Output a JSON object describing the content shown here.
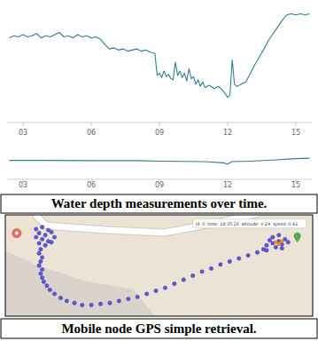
{
  "chart_data": [
    {
      "type": "line",
      "x": [
        2.4,
        2.6,
        2.8,
        3.0,
        3.2,
        3.4,
        3.6,
        3.8,
        4.0,
        4.2,
        4.4,
        4.6,
        4.8,
        5.0,
        5.2,
        5.4,
        5.6,
        5.8,
        6.0,
        6.2,
        6.4,
        6.6,
        6.8,
        7.0,
        7.2,
        7.4,
        7.6,
        7.8,
        8.0,
        8.2,
        8.4,
        8.6,
        8.8,
        8.9,
        9.0,
        9.1,
        9.2,
        9.3,
        9.4,
        9.5,
        9.6,
        9.7,
        9.8,
        9.9,
        10.0,
        10.1,
        10.2,
        10.3,
        10.4,
        10.5,
        10.6,
        10.7,
        10.8,
        10.9,
        11.0,
        11.2,
        11.4,
        11.6,
        11.8,
        12.0,
        12.1,
        12.2,
        12.3,
        12.4,
        12.6,
        12.8,
        13.0,
        13.2,
        13.4,
        13.6,
        13.8,
        14.0,
        14.2,
        14.4,
        14.6,
        14.8,
        15.0,
        15.2,
        15.4,
        15.6
      ],
      "series": [
        {
          "color": "#2f7f8f",
          "values": [
            72,
            74,
            73,
            75,
            73,
            74,
            76,
            72,
            74,
            73,
            75,
            77,
            73,
            74,
            72,
            75,
            73,
            74,
            72,
            73,
            71,
            66,
            62,
            63,
            61,
            62,
            60,
            61,
            62,
            60,
            61,
            59,
            58,
            38,
            40,
            36,
            42,
            37,
            39,
            35,
            34,
            50,
            38,
            42,
            36,
            40,
            33,
            44,
            35,
            37,
            30,
            34,
            28,
            32,
            27,
            29,
            26,
            28,
            24,
            18,
            20,
            52,
            30,
            28,
            30,
            32,
            40,
            48,
            55,
            62,
            70,
            76,
            82,
            88,
            93,
            94,
            93,
            94,
            93,
            94
          ]
        }
      ],
      "xlim": [
        2.3,
        15.7
      ],
      "xticks": [
        {
          "value": 3,
          "label": "03"
        },
        {
          "value": 6,
          "label": "06"
        },
        {
          "value": 9,
          "label": "09"
        },
        {
          "value": 12,
          "label": "12"
        },
        {
          "value": 15,
          "label": "15"
        }
      ],
      "ylim": [
        0,
        100
      ],
      "tick_labels": "x"
    },
    {
      "type": "line",
      "x": [
        2.4,
        4.0,
        6.0,
        8.0,
        9.0,
        10.0,
        11.0,
        11.8,
        12.0,
        12.2,
        13.0,
        14.0,
        15.0,
        15.6
      ],
      "series": [
        {
          "color": "#2f7f8f",
          "values": [
            55,
            55,
            54,
            54,
            52,
            51,
            50,
            45,
            40,
            50,
            52,
            56,
            62,
            64
          ]
        }
      ],
      "xlim": [
        2.3,
        15.7
      ],
      "xticks": [
        {
          "value": 3,
          "label": "03"
        },
        {
          "value": 6,
          "label": "06"
        },
        {
          "value": 9,
          "label": "09"
        },
        {
          "value": 12,
          "label": "12"
        },
        {
          "value": 15,
          "label": "15"
        }
      ],
      "ylim": [
        0,
        100
      ],
      "tick_labels": "x"
    }
  ],
  "caption_top": "Water depth measurements over time.",
  "map": {
    "xlim": [
      0,
      100
    ],
    "ylim": [
      0,
      100
    ],
    "track": {
      "color": "#5b55d8",
      "x": [
        10,
        12,
        14,
        11,
        13,
        15,
        16,
        12,
        10,
        14,
        11,
        13,
        15,
        11.5,
        11,
        12,
        11.5,
        11,
        12,
        11.5,
        12,
        12.5,
        13.5,
        14.5,
        16,
        18,
        20,
        22.5,
        25,
        28,
        31,
        34,
        37,
        40,
        43,
        46,
        49,
        52,
        55,
        58,
        61,
        64,
        67,
        70,
        73,
        76,
        79,
        82,
        84,
        85,
        87,
        89,
        86,
        88,
        90,
        91,
        87,
        89,
        92,
        85,
        90
      ],
      "y": [
        14,
        12,
        15,
        18,
        20,
        17,
        22,
        24,
        22,
        26,
        28,
        30,
        27,
        34,
        38,
        42,
        46,
        50,
        54,
        58,
        62,
        66,
        70,
        74,
        78,
        82,
        85,
        87,
        89,
        89,
        88,
        87,
        85,
        83,
        81,
        78,
        75,
        72,
        68,
        64,
        60,
        56,
        53,
        49,
        46,
        43,
        40,
        37,
        34,
        30,
        28,
        26,
        25,
        32,
        29,
        24,
        22,
        20,
        27,
        35,
        33
      ]
    },
    "highlight": {
      "color": "#f08a24",
      "x": [
        88,
        89,
        90
      ],
      "y": [
        27,
        29,
        26
      ]
    },
    "markers": [
      {
        "x": 3.7,
        "y": 18,
        "color": "#e05a4e"
      },
      {
        "x": 95,
        "y": 27,
        "color": "#4caf50"
      }
    ],
    "popup": [
      {
        "label": "id:",
        "value": 0
      },
      {
        "label": "time:",
        "value": "18:35:16"
      },
      {
        "label": "altitude:",
        "value": 0.29
      },
      {
        "label": "speed:",
        "value": 0.41
      }
    ]
  },
  "caption_bottom": "Mobile node GPS simple retrieval."
}
